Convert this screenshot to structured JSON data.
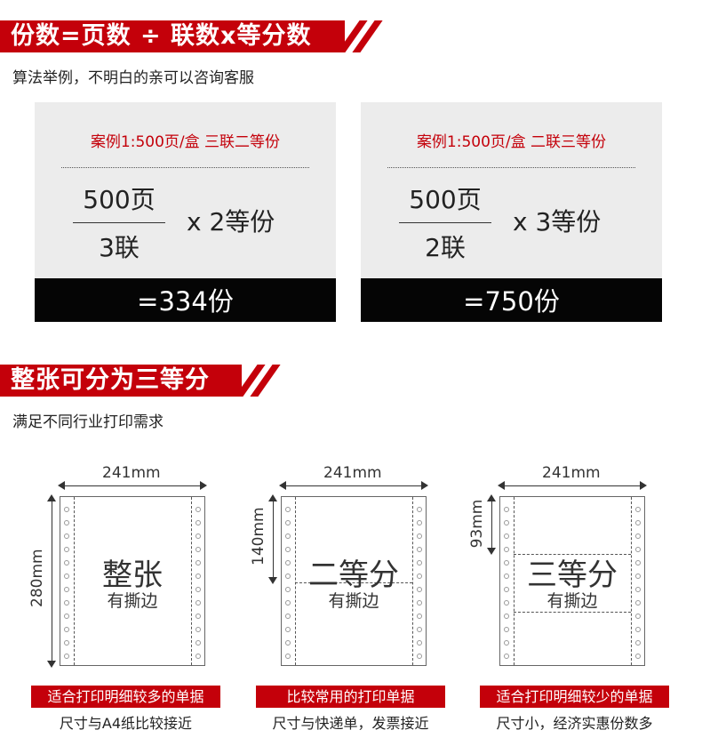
{
  "section1": {
    "title": "份数=页数 ÷ 联数x等分数",
    "subtitle": "算法举例，不明白的亲可以咨询客服"
  },
  "cards": [
    {
      "title": "案例1:500页/盒 三联二等份",
      "numerator": "500页",
      "denominator": "3联",
      "multiplier": "x 2等份",
      "result": "=334份"
    },
    {
      "title": "案例1:500页/盒 二联三等份",
      "numerator": "500页",
      "denominator": "2联",
      "multiplier": "x 3等份",
      "result": "=750份"
    }
  ],
  "section2": {
    "title": "整张可分为三等分",
    "subtitle": "满足不同行业打印需求"
  },
  "papers": [
    {
      "width": "241mm",
      "height": "280mm",
      "label": "整张",
      "sublabel": "有撕边",
      "tag": "适合打印明细较多的单据",
      "desc": "尺寸与A4纸比较接近"
    },
    {
      "width": "241mm",
      "height": "140mm",
      "label": "二等分",
      "sublabel": "有撕边",
      "tag": "比较常用的打印单据",
      "desc": "尺寸与快递单，发票接近"
    },
    {
      "width": "241mm",
      "height": "93mm",
      "label": "三等分",
      "sublabel": "有撕边",
      "tag": "适合打印明细较少的单据",
      "desc": "尺寸小，经济实惠份数多"
    }
  ],
  "colors": {
    "accent": "#c4000a",
    "result_bar": "#050505",
    "card_bg": "#ececec"
  }
}
